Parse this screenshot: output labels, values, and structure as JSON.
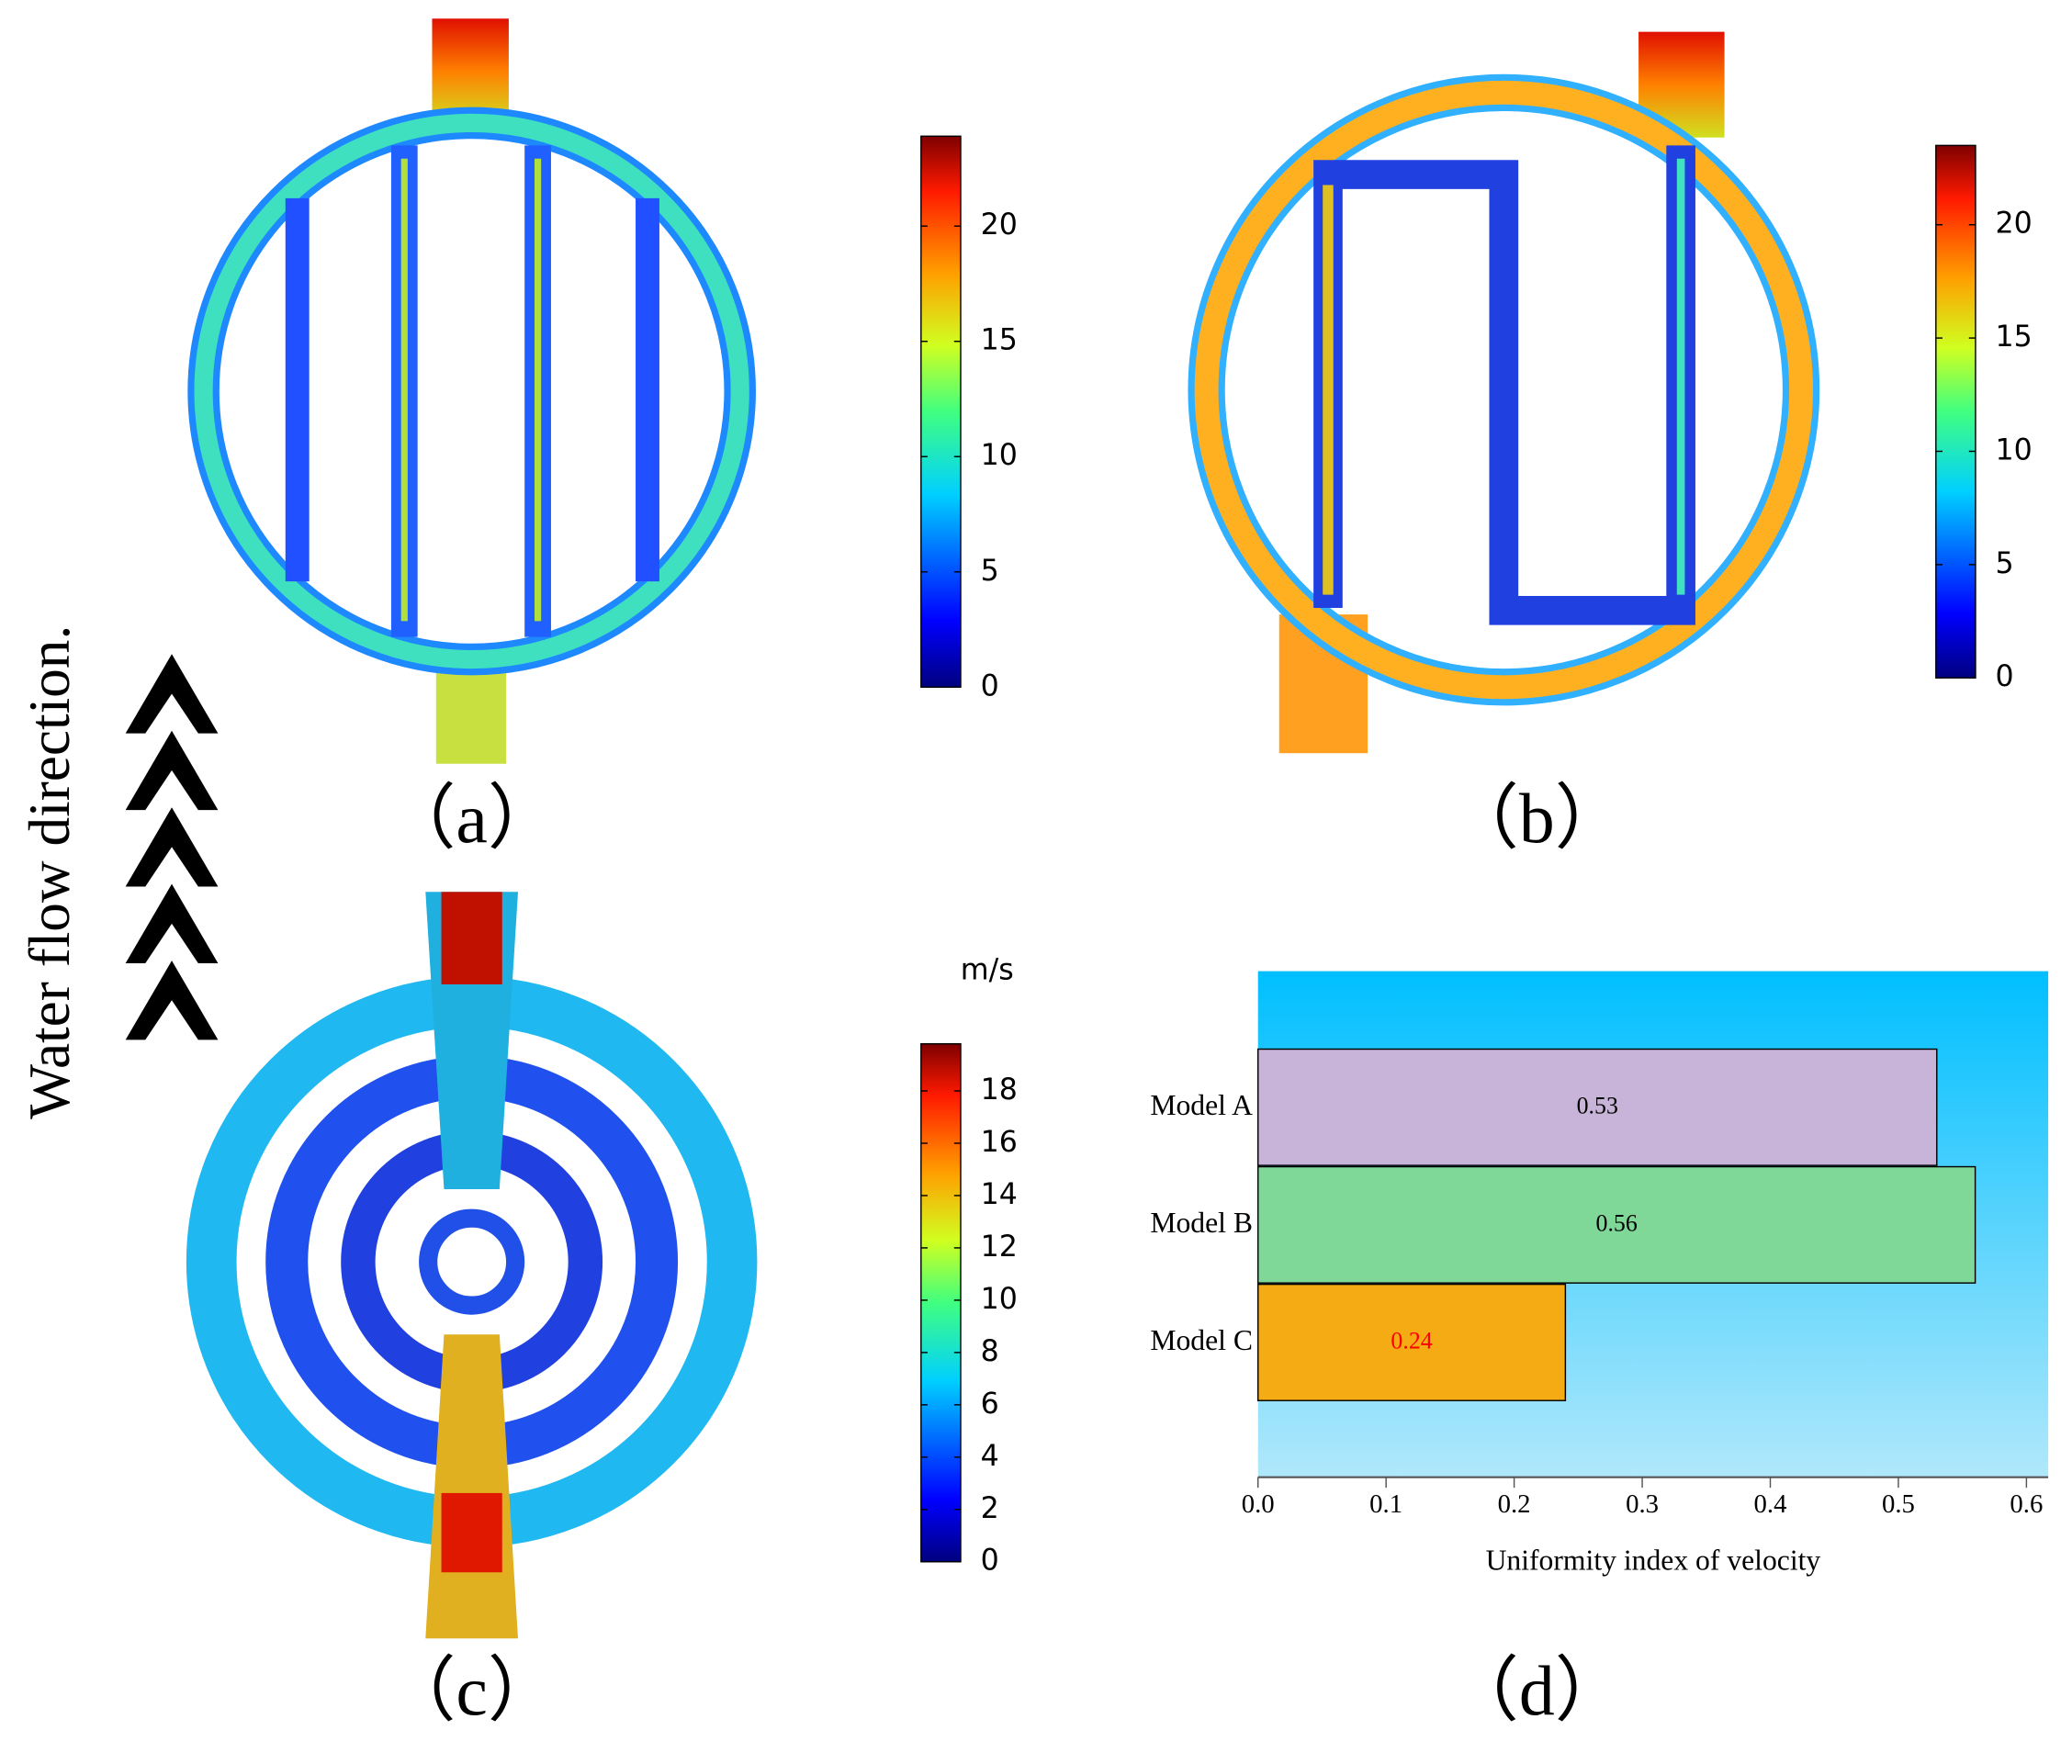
{
  "annotation": "Water flow direction.",
  "chart_data": [
    {
      "type": "colorbar",
      "panel_label": "（a）",
      "ylim": [
        0,
        23.9
      ],
      "yticks": [
        0,
        5,
        10,
        15,
        20
      ]
    },
    {
      "type": "colorbar",
      "panel_label": "（b）",
      "ylim": [
        0,
        23.5
      ],
      "yticks": [
        0,
        5,
        10,
        15,
        20
      ]
    },
    {
      "type": "colorbar",
      "panel_label": "（c）",
      "unit": "m/s",
      "ylim": [
        0,
        19.8
      ],
      "yticks": [
        0,
        2,
        4,
        6,
        8,
        10,
        12,
        14,
        16,
        18
      ]
    },
    {
      "type": "bar",
      "orientation": "horizontal",
      "panel_label": "（d）",
      "xlabel": "Uniformity index of velocity",
      "categories": [
        "Model A",
        "Model B",
        "Model C"
      ],
      "values": [
        0.53,
        0.56,
        0.24
      ],
      "colors": [
        "#c8b4d8",
        "#80d898",
        "#f5ab14"
      ],
      "value_label_colors": [
        "#000000",
        "#000000",
        "#ff0000"
      ],
      "xlim": [
        0,
        0.617
      ],
      "xticks": [
        {
          "value": 0,
          "label": "0.0"
        },
        0.1,
        0.2,
        0.3,
        0.4,
        0.5,
        0.6
      ],
      "grid": false
    }
  ]
}
